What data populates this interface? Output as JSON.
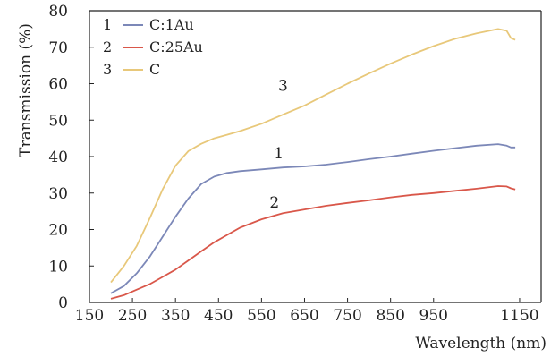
{
  "chart_data": {
    "type": "line",
    "xlabel": "Wavelength (nm)",
    "ylabel": "Transmission (%)",
    "xlim": [
      150,
      1200
    ],
    "ylim": [
      0,
      80
    ],
    "xticks": [
      "150",
      "250",
      "350",
      "450",
      "550",
      "650",
      "750",
      "850",
      "950",
      "1150"
    ],
    "yticks": [
      "0",
      "10",
      "20",
      "30",
      "40",
      "50",
      "60",
      "70",
      "80"
    ],
    "grid": false,
    "legend_position": "top-left",
    "series": [
      {
        "id": "1",
        "name": "C:1Au",
        "color": "#7c88b8",
        "label": "1",
        "label_at": [
          590,
          39.5
        ],
        "x": [
          200,
          230,
          260,
          290,
          320,
          350,
          380,
          410,
          440,
          470,
          500,
          550,
          600,
          650,
          700,
          750,
          800,
          850,
          900,
          950,
          1000,
          1050,
          1100,
          1120,
          1130,
          1140
        ],
        "y": [
          2.5,
          4.5,
          8,
          12.5,
          18,
          23.5,
          28.5,
          32.5,
          34.5,
          35.5,
          36,
          36.5,
          37,
          37.3,
          37.8,
          38.5,
          39.3,
          40,
          40.8,
          41.6,
          42.3,
          43,
          43.4,
          43,
          42.5,
          42.5
        ]
      },
      {
        "id": "2",
        "name": "C:25Au",
        "color": "#d9574a",
        "label": "2",
        "label_at": [
          580,
          26
        ],
        "x": [
          200,
          230,
          260,
          290,
          320,
          350,
          380,
          410,
          440,
          470,
          500,
          550,
          600,
          650,
          700,
          750,
          800,
          850,
          900,
          950,
          1000,
          1050,
          1100,
          1120,
          1130,
          1140
        ],
        "y": [
          1,
          2,
          3.5,
          5,
          7,
          9,
          11.5,
          14,
          16.5,
          18.5,
          20.5,
          22.8,
          24.5,
          25.5,
          26.5,
          27.3,
          28,
          28.8,
          29.5,
          30,
          30.6,
          31.2,
          31.9,
          31.8,
          31.3,
          31
        ]
      },
      {
        "id": "3",
        "name": "C",
        "color": "#e8c87a",
        "label": "3",
        "label_at": [
          600,
          58
        ],
        "x": [
          200,
          230,
          260,
          290,
          320,
          350,
          380,
          410,
          440,
          470,
          500,
          550,
          600,
          650,
          700,
          750,
          800,
          850,
          900,
          950,
          1000,
          1050,
          1100,
          1120,
          1130,
          1140
        ],
        "y": [
          5.5,
          10,
          15.5,
          23,
          31,
          37.5,
          41.5,
          43.5,
          45,
          46,
          47,
          49,
          51.5,
          54,
          57,
          60,
          62.8,
          65.5,
          68,
          70.3,
          72.3,
          73.8,
          75,
          74.5,
          72.5,
          72
        ]
      }
    ]
  }
}
